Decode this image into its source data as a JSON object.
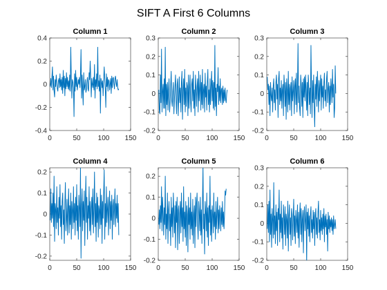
{
  "title": "SIFT A First 6 Columns",
  "style": {
    "line_color": "#0072BD",
    "axis_color": "#262626",
    "background": "#ffffff"
  },
  "chart_data": [
    {
      "type": "line",
      "title": "Column 1",
      "xlim": [
        0,
        150
      ],
      "ylim": [
        -0.4,
        0.4
      ],
      "xticks": [
        0,
        50,
        100,
        150
      ],
      "xtick_labels": [
        "0",
        "50",
        "100",
        "150"
      ],
      "yticks": [
        -0.4,
        -0.2,
        0,
        0.2,
        0.4
      ],
      "ytick_labels": [
        "-0.4",
        "-0.2",
        "0",
        "0.2",
        "0.4"
      ],
      "series": [
        {
          "x_start": 1,
          "x_step": 1,
          "values": [
            -0.02,
            0.05,
            -0.03,
            0.06,
            0.15,
            -0.05,
            0.07,
            -0.06,
            -0.11,
            0.04,
            -0.02,
            0.08,
            0.02,
            -0.04,
            -0.06,
            0.03,
            0.05,
            -0.03,
            0.09,
            -0.02,
            0.04,
            -0.05,
            0.06,
            -0.08,
            0.12,
            -0.03,
            0.07,
            -0.1,
            0.05,
            -0.04,
            0.1,
            -0.02,
            0.06,
            -0.04,
            0.03,
            -0.05,
            0.08,
            -0.06,
            0.32,
            0.05,
            -0.12,
            0.04,
            0.02,
            -0.03,
            -0.28,
            0.09,
            -0.06,
            0.12,
            -0.02,
            0.06,
            -0.05,
            -0.01,
            0.04,
            0.0,
            0.06,
            -0.03,
            0.08,
            0.3,
            -0.12,
            0.08,
            -0.04,
            -0.18,
            0.1,
            -0.05,
            -0.02,
            0.04,
            -0.07,
            -0.05,
            0.03,
            0.06,
            -0.04,
            -0.06,
            0.1,
            0.04,
            0.2,
            0.06,
            -0.11,
            0.05,
            0.0,
            -0.03,
            0.06,
            -0.05,
            0.17,
            -0.12,
            0.04,
            -0.02,
            0.09,
            -0.04,
            0.32,
            -0.02,
            0.03,
            -0.06,
            0.08,
            -0.25,
            0.05,
            0.02,
            -0.03,
            0.03,
            -0.1,
            0.04,
            0.15,
            0.05,
            -0.04,
            -0.2,
            0.09,
            -0.02,
            0.06,
            -0.06,
            0.04,
            0.03,
            -0.05,
            0.0,
            0.05,
            -0.08,
            0.07,
            -0.03,
            0.05,
            0.06,
            0.0,
            -0.04,
            0.05,
            0.07,
            0.01,
            -0.02,
            0.04,
            -0.03,
            -0.05,
            -0.04
          ]
        }
      ]
    },
    {
      "type": "line",
      "title": "Column 2",
      "xlim": [
        0,
        150
      ],
      "ylim": [
        -0.2,
        0.3
      ],
      "xticks": [
        0,
        50,
        100,
        150
      ],
      "xtick_labels": [
        "0",
        "50",
        "100",
        "150"
      ],
      "yticks": [
        -0.2,
        -0.1,
        0,
        0.1,
        0.2,
        0.3
      ],
      "ytick_labels": [
        "-0.2",
        "-0.1",
        "0",
        "0.1",
        "0.2",
        "0.3"
      ],
      "series": [
        {
          "x_start": 1,
          "x_step": 1,
          "values": [
            0.02,
            -0.09,
            -0.11,
            0.1,
            -0.05,
            0.24,
            -0.1,
            0.01,
            0.05,
            -0.08,
            0.08,
            -0.08,
            0.25,
            -0.12,
            0.05,
            -0.06,
            0.06,
            -0.09,
            0.02,
            0.08,
            -0.1,
            -0.05,
            0.04,
            0.12,
            -0.04,
            -0.07,
            0.01,
            0.06,
            -0.11,
            -0.03,
            0.04,
            0.1,
            -0.04,
            -0.11,
            0.05,
            0.08,
            -0.12,
            -0.02,
            0.09,
            -0.05,
            0.03,
            -0.1,
            0.06,
            0.12,
            -0.14,
            0.02,
            0.08,
            -0.06,
            0.13,
            -0.1,
            0.03,
            -0.07,
            0.06,
            0.04,
            -0.12,
            0.1,
            -0.08,
            0.02,
            0.1,
            -0.05,
            -0.1,
            0.05,
            0.08,
            -0.04,
            0.12,
            -0.08,
            0.02,
            -0.12,
            0.1,
            0.03,
            -0.07,
            0.04,
            0.08,
            -0.1,
            0.12,
            -0.04,
            0.02,
            0.1,
            -0.09,
            0.06,
            -0.06,
            0.13,
            -0.08,
            0.02,
            0.05,
            -0.1,
            0.11,
            -0.02,
            0.04,
            -0.09,
            0.06,
            0.13,
            -0.06,
            0.02,
            -0.1,
            0.08,
            -0.06,
            0.04,
            0.12,
            -0.04,
            0.07,
            -0.08,
            0.06,
            -0.09,
            0.26,
            -0.07,
            0.03,
            -0.12,
            0.05,
            0.01,
            0.14,
            -0.06,
            0.04,
            -0.04,
            0.08,
            -0.05,
            0.02,
            0.03,
            -0.06,
            0.04,
            -0.05,
            0.02,
            -0.04,
            0.03,
            -0.03,
            -0.05,
            0.0,
            0.02
          ]
        }
      ]
    },
    {
      "type": "line",
      "title": "Column 3",
      "xlim": [
        0,
        150
      ],
      "ylim": [
        -0.2,
        0.3
      ],
      "xticks": [
        0,
        50,
        100,
        150
      ],
      "xtick_labels": [
        "0",
        "50",
        "100",
        "150"
      ],
      "yticks": [
        -0.2,
        -0.1,
        0,
        0.1,
        0.2,
        0.3
      ],
      "ytick_labels": [
        "-0.2",
        "-0.1",
        "0",
        "0.1",
        "0.2",
        "0.3"
      ],
      "series": [
        {
          "x_start": 1,
          "x_step": 1,
          "values": [
            0.09,
            0.02,
            0.05,
            -0.06,
            0.04,
            -0.12,
            0.06,
            -0.01,
            -0.04,
            0.03,
            -0.1,
            0.04,
            0.08,
            -0.05,
            0.02,
            -0.09,
            0.06,
            0.1,
            -0.03,
            0.05,
            -0.13,
            0.08,
            0.12,
            -0.06,
            0.03,
            -0.04,
            0.07,
            -0.08,
            0.02,
            0.05,
            -0.12,
            0.1,
            0.04,
            -0.07,
            0.06,
            -0.14,
            0.08,
            0.02,
            -0.1,
            0.12,
            -0.06,
            0.05,
            -0.09,
            0.03,
            0.06,
            -0.12,
            0.09,
            -0.04,
            0.01,
            0.07,
            -0.11,
            0.04,
            0.08,
            -0.06,
            0.11,
            -0.1,
            0.02,
            0.27,
            -0.05,
            0.04,
            -0.08,
            -0.12,
            0.1,
            0.05,
            -0.07,
            0.06,
            -0.13,
            0.08,
            -0.02,
            0.09,
            -0.04,
            0.1,
            0.02,
            -0.09,
            0.06,
            -0.12,
            0.1,
            0.04,
            -0.06,
            0.03,
            -0.11,
            0.26,
            0.04,
            -0.13,
            0.07,
            -0.05,
            0.1,
            -0.08,
            -0.18,
            0.05,
            -0.03,
            0.09,
            -0.07,
            0.12,
            0.03,
            -0.1,
            0.07,
            -0.04,
            0.05,
            0.1,
            -0.09,
            0.08,
            -0.02,
            0.04,
            -0.08,
            0.06,
            0.11,
            -0.04,
            0.02,
            -0.07,
            0.08,
            0.12,
            -0.05,
            0.03,
            0.06,
            -0.1,
            0.04,
            -0.06,
            0.08,
            0.03,
            -0.05,
            0.13,
            -0.02,
            0.05,
            -0.13,
            -0.08,
            0.15,
            0.0
          ]
        }
      ]
    },
    {
      "type": "line",
      "title": "Column 4",
      "xlim": [
        0,
        150
      ],
      "ylim": [
        -0.22,
        0.22
      ],
      "xticks": [
        0,
        50,
        100,
        150
      ],
      "xtick_labels": [
        "0",
        "50",
        "100",
        "150"
      ],
      "yticks": [
        -0.2,
        -0.1,
        0,
        0.1,
        0.2
      ],
      "ytick_labels": [
        "-0.2",
        "-0.1",
        "0",
        "0.1",
        "0.2"
      ],
      "series": [
        {
          "x_start": 1,
          "x_step": 1,
          "values": [
            -0.03,
            0.12,
            -0.04,
            0.05,
            -0.02,
            0.1,
            -0.06,
            0.18,
            -0.13,
            0.05,
            0.02,
            -0.07,
            0.13,
            -0.04,
            0.03,
            -0.1,
            0.08,
            -0.02,
            0.14,
            -0.06,
            0.04,
            -0.12,
            0.06,
            0.1,
            -0.05,
            0.02,
            -0.14,
            0.05,
            0.15,
            -0.08,
            -0.03,
            0.07,
            -0.1,
            0.02,
            0.12,
            -0.09,
            0.04,
            -0.05,
            0.1,
            -0.12,
            0.06,
            0.02,
            -0.07,
            0.13,
            -0.04,
            0.05,
            -0.1,
            0.08,
            -0.03,
            0.14,
            -0.08,
            0.04,
            -0.12,
            0.09,
            0.03,
            -0.06,
            0.22,
            -0.21,
            0.04,
            0.12,
            -0.08,
            0.06,
            -0.03,
            0.11,
            -0.15,
            0.05,
            0.18,
            -0.04,
            0.08,
            -0.12,
            0.04,
            -0.02,
            0.13,
            -0.08,
            0.06,
            -0.1,
            0.03,
            0.08,
            -0.05,
            0.12,
            -0.09,
            0.02,
            0.2,
            -0.06,
            0.05,
            -0.13,
            0.1,
            -0.04,
            0.08,
            -0.11,
            0.04,
            0.02,
            -0.07,
            0.12,
            -0.05,
            0.09,
            -0.14,
            0.06,
            -0.02,
            0.1,
            0.21,
            -0.12,
            0.05,
            -0.06,
            0.13,
            -0.04,
            0.02,
            0.08,
            -0.1,
            0.04,
            0.11,
            -0.07,
            0.06,
            -0.03,
            0.09,
            -0.12,
            0.04,
            0.07,
            -0.05,
            0.03,
            0.12,
            -0.06,
            0.05,
            -0.02,
            0.09,
            -0.04,
            0.05,
            -0.1
          ]
        }
      ]
    },
    {
      "type": "line",
      "title": "Column 5",
      "xlim": [
        0,
        150
      ],
      "ylim": [
        -0.2,
        0.24
      ],
      "xticks": [
        0,
        50,
        100,
        150
      ],
      "xtick_labels": [
        "0",
        "50",
        "100",
        "150"
      ],
      "yticks": [
        -0.2,
        -0.1,
        0,
        0.1,
        0.2
      ],
      "ytick_labels": [
        "-0.2",
        "-0.1",
        "0",
        "0.1",
        "0.2"
      ],
      "series": [
        {
          "x_start": 1,
          "x_step": 1,
          "values": [
            -0.03,
            0.04,
            -0.05,
            0.06,
            -0.02,
            0.15,
            -0.06,
            0.1,
            0.02,
            -0.08,
            0.05,
            -0.03,
            0.2,
            -0.1,
            0.02,
            -0.05,
            0.12,
            -0.12,
            0.04,
            0.08,
            -0.06,
            0.02,
            -0.13,
            0.1,
            -0.04,
            0.05,
            -0.09,
            0.12,
            0.03,
            -0.07,
            0.06,
            -0.14,
            0.08,
            -0.02,
            0.1,
            -0.15,
            0.04,
            0.06,
            -0.12,
            0.02,
            0.08,
            -0.07,
            0.12,
            -0.04,
            0.05,
            -0.11,
            0.15,
            -0.05,
            0.03,
            -0.09,
            0.08,
            -0.13,
            0.06,
            0.02,
            -0.16,
            0.1,
            -0.03,
            0.05,
            -0.1,
            0.12,
            -0.05,
            0.03,
            -0.08,
            0.09,
            -0.12,
            0.02,
            0.06,
            -0.14,
            0.1,
            -0.04,
            0.07,
            0.12,
            -0.03,
            -0.1,
            0.08,
            0.03,
            -0.06,
            0.1,
            -0.08,
            0.04,
            -0.12,
            0.06,
            0.25,
            -0.05,
            0.02,
            -0.17,
            0.08,
            0.03,
            -0.06,
            0.12,
            -0.09,
            0.05,
            -0.13,
            0.06,
            -0.02,
            0.2,
            -0.08,
            0.04,
            -0.11,
            0.06,
            0.02,
            -0.07,
            0.12,
            -0.04,
            0.03,
            -0.1,
            0.08,
            -0.05,
            0.02,
            0.1,
            -0.07,
            0.04,
            -0.05,
            0.06,
            0.02,
            -0.06,
            0.05,
            -0.03,
            0.08,
            -0.04,
            0.03,
            -0.05,
            0.02,
            0.13,
            0.11,
            0.14
          ]
        }
      ]
    },
    {
      "type": "line",
      "title": "Column 6",
      "xlim": [
        0,
        150
      ],
      "ylim": [
        -0.2,
        0.3
      ],
      "xticks": [
        0,
        50,
        100,
        150
      ],
      "xtick_labels": [
        "0",
        "50",
        "100",
        "150"
      ],
      "yticks": [
        -0.2,
        -0.1,
        0,
        0.1,
        0.2,
        0.3
      ],
      "ytick_labels": [
        "-0.2",
        "-0.1",
        "0",
        "0.1",
        "0.2",
        "0.3"
      ],
      "series": [
        {
          "x_start": 1,
          "x_step": 1,
          "values": [
            -0.03,
            0.1,
            -0.05,
            0.12,
            -0.1,
            0.18,
            -0.06,
            0.05,
            -0.13,
            0.08,
            0.02,
            -0.08,
            0.22,
            -0.06,
            0.04,
            -0.11,
            0.1,
            -0.04,
            0.06,
            -0.12,
            0.08,
            0.02,
            0.18,
            -0.1,
            0.05,
            -0.05,
            0.12,
            -0.08,
            0.03,
            -0.14,
            0.1,
            0.04,
            -0.06,
            0.09,
            -0.12,
            0.05,
            0.02,
            -0.08,
            0.12,
            -0.15,
            0.04,
            0.1,
            -0.06,
            0.03,
            -0.12,
            0.08,
            0.05,
            -0.09,
            0.02,
            0.13,
            -0.07,
            0.04,
            -0.11,
            0.07,
            0.02,
            -0.05,
            0.1,
            -0.08,
            0.06,
            -0.13,
            0.04,
            0.11,
            -0.06,
            0.08,
            -0.1,
            0.02,
            0.07,
            -0.16,
            0.05,
            0.09,
            -0.04,
            0.02,
            0.1,
            -0.22,
            0.06,
            -0.03,
            0.08,
            -0.07,
            0.04,
            -0.1,
            0.05,
            0.09,
            -0.05,
            0.02,
            -0.08,
            0.07,
            -0.03,
            0.06,
            -0.12,
            0.04,
            0.08,
            -0.06,
            0.03,
            -0.08,
            0.06,
            0.12,
            -0.05,
            0.02,
            -0.09,
            0.07,
            -0.04,
            0.03,
            -0.06,
            0.05,
            -0.03,
            0.08,
            -0.1,
            0.04,
            -0.02,
            0.05,
            -0.06,
            0.02,
            -0.15,
            0.06,
            -0.03,
            0.04,
            -0.05,
            0.02,
            -0.02,
            0.03,
            -0.04,
            0.02,
            -0.06,
            0.04,
            -0.03,
            -0.01,
            0.02,
            -0.03
          ]
        }
      ]
    }
  ]
}
